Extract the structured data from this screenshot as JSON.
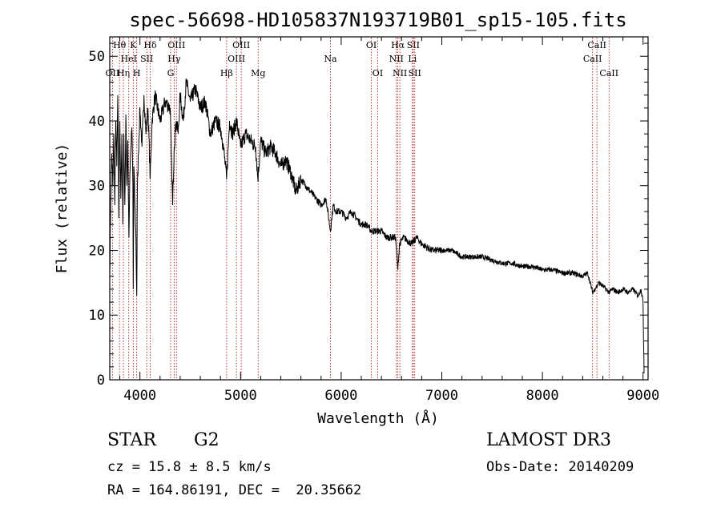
{
  "chart_data": {
    "type": "line",
    "title": "spec-56698-HD105837N193719B01_sp15-105.fits",
    "xlabel": "Wavelength (Å)",
    "ylabel": "Flux (relative)",
    "xlim": [
      3700,
      9050
    ],
    "ylim": [
      0,
      53
    ],
    "xticks": [
      4000,
      5000,
      6000,
      7000,
      8000,
      9000
    ],
    "yticks": [
      0,
      10,
      20,
      30,
      40,
      50
    ],
    "series": [
      {
        "name": "flux",
        "x": [
          3700,
          3710,
          3720,
          3730,
          3740,
          3750,
          3760,
          3770,
          3780,
          3790,
          3800,
          3810,
          3820,
          3830,
          3840,
          3850,
          3860,
          3870,
          3880,
          3890,
          3900,
          3910,
          3920,
          3930,
          3933,
          3940,
          3950,
          3960,
          3968,
          3975,
          3985,
          4000,
          4020,
          4040,
          4060,
          4080,
          4102,
          4120,
          4150,
          4200,
          4250,
          4300,
          4325,
          4340,
          4360,
          4380,
          4400,
          4430,
          4460,
          4500,
          4550,
          4600,
          4650,
          4700,
          4750,
          4800,
          4830,
          4861,
          4890,
          4920,
          4960,
          5000,
          5050,
          5100,
          5150,
          5172,
          5200,
          5250,
          5300,
          5350,
          5400,
          5450,
          5500,
          5550,
          5600,
          5650,
          5700,
          5750,
          5800,
          5850,
          5893,
          5920,
          5950,
          6000,
          6050,
          6100,
          6150,
          6200,
          6250,
          6300,
          6350,
          6400,
          6450,
          6500,
          6540,
          6563,
          6580,
          6620,
          6700,
          6750,
          6800,
          6900,
          7000,
          7100,
          7200,
          7300,
          7400,
          7500,
          7600,
          7700,
          7800,
          7900,
          8000,
          8100,
          8200,
          8300,
          8400,
          8450,
          8498,
          8542,
          8560,
          8600,
          8662,
          8700,
          8750,
          8800,
          8850,
          8900,
          8950,
          8980,
          9000,
          9010
        ],
        "y": [
          16,
          28,
          35,
          30,
          38,
          27,
          40,
          33,
          44,
          25,
          40,
          28,
          38,
          24,
          38,
          27,
          41,
          30,
          37,
          22,
          32,
          36,
          39,
          30,
          14,
          33,
          27,
          22,
          13,
          30,
          35,
          42,
          36,
          44,
          38,
          42,
          31,
          40,
          44,
          40,
          43,
          42,
          27,
          36,
          40,
          38,
          44,
          40,
          46,
          43,
          45,
          42,
          43,
          38,
          40,
          39,
          36,
          31,
          40,
          38,
          40,
          36,
          38,
          37,
          36,
          31,
          37,
          35,
          36,
          35,
          33,
          34,
          32,
          29,
          31,
          30,
          29,
          28,
          27,
          28,
          23,
          27,
          26,
          26,
          25,
          26,
          25,
          24,
          24,
          23,
          23,
          23,
          22,
          22,
          22,
          17,
          21,
          22,
          21,
          22,
          21,
          20,
          20,
          20,
          19,
          19,
          19,
          18.5,
          18,
          18,
          17.5,
          17.5,
          17,
          17,
          16.5,
          16.5,
          16,
          16.5,
          13.5,
          14.5,
          15,
          14.5,
          13.5,
          14,
          13.5,
          14,
          13.5,
          14,
          13,
          14,
          12,
          1
        ]
      }
    ],
    "lines": [
      {
        "name": "OII",
        "x": 3727,
        "row": 2
      },
      {
        "name": "Hθ",
        "x": 3797,
        "row": 0
      },
      {
        "name": "Hη",
        "x": 3835,
        "row": 2
      },
      {
        "name": "HeI",
        "x": 3889,
        "row": 1
      },
      {
        "name": "K",
        "x": 3934,
        "row": 0
      },
      {
        "name": "SII",
        "x": 4068,
        "row": 1
      },
      {
        "name": "H",
        "x": 3968,
        "row": 2
      },
      {
        "name": "Hδ",
        "x": 4102,
        "row": 0
      },
      {
        "name": "OIII",
        "x": 4363,
        "row": 0
      },
      {
        "name": "Hγ",
        "x": 4340,
        "row": 1
      },
      {
        "name": "G",
        "x": 4305,
        "row": 2
      },
      {
        "name": "Hβ",
        "x": 4861,
        "row": 2
      },
      {
        "name": "OIII",
        "x": 5007,
        "row": 0
      },
      {
        "name": "OIII",
        "x": 4959,
        "row": 1
      },
      {
        "name": "Mg",
        "x": 5175,
        "row": 2
      },
      {
        "name": "Na",
        "x": 5893,
        "row": 1
      },
      {
        "name": "OI",
        "x": 6300,
        "row": 0
      },
      {
        "name": "OI",
        "x": 6363,
        "row": 2
      },
      {
        "name": "Hα",
        "x": 6563,
        "row": 0
      },
      {
        "name": "NII",
        "x": 6548,
        "row": 1
      },
      {
        "name": "NII",
        "x": 6583,
        "row": 2
      },
      {
        "name": "SII",
        "x": 6716,
        "row": 0
      },
      {
        "name": "Li",
        "x": 6708,
        "row": 1
      },
      {
        "name": "SII",
        "x": 6731,
        "row": 2
      },
      {
        "name": "CaII",
        "x": 8542,
        "row": 0
      },
      {
        "name": "CaII",
        "x": 8498,
        "row": 1
      },
      {
        "name": "CaII",
        "x": 8662,
        "row": 2
      }
    ]
  },
  "info": {
    "class": "STAR",
    "subclass": "G2",
    "survey": "LAMOST DR3",
    "cz": "cz = 15.8 ± 8.5 km/s",
    "obsdate": "Obs-Date: 20140209",
    "coords": "RA = 164.86191, DEC =  20.35662"
  }
}
